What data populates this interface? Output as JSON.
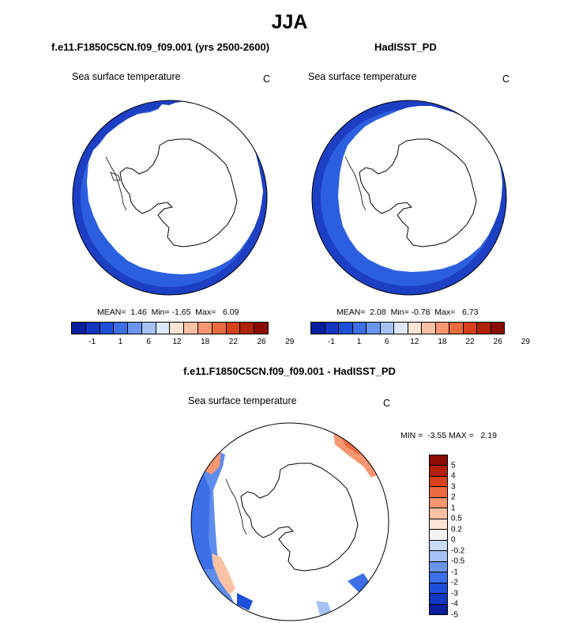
{
  "main_title": "JJA",
  "panels": [
    {
      "title": "f.e11.F1850C5CN.f09_f09.001 (yrs 2500-2600)",
      "variable": "Sea surface temperature",
      "units": "C",
      "stats": "MEAN=  1.46  Min= -1.65  Max=   6.09"
    },
    {
      "title": "HadISST_PD",
      "variable": "Sea surface temperature",
      "units": "C",
      "stats": "MEAN=  2.08  Min= -0.78  Max=   6.73"
    },
    {
      "title": "f.e11.F1850C5CN.f09_f09.001 - HadISST_PD",
      "variable": "Sea surface temperature",
      "units": "C",
      "stats": "MIN =  -3.55 MAX =   2.19"
    }
  ],
  "colors": {
    "abs_scale": [
      "#0a1f9e",
      "#1237c0",
      "#1e4fd8",
      "#3c6ee8",
      "#6b94ee",
      "#a6c2f4",
      "#dde9fb",
      "#fde4d4",
      "#fbc1a3",
      "#f79670",
      "#ee6a3f",
      "#d7401a",
      "#b12008",
      "#8a0c02"
    ],
    "diff_scale": [
      "#8a0c02",
      "#b12008",
      "#d7401a",
      "#ee6a3f",
      "#f79670",
      "#fbc1a3",
      "#fde4d4",
      "#f4f4f4",
      "#c9dbf8",
      "#a6c2f4",
      "#6b94ee",
      "#3c6ee8",
      "#1e4fd8",
      "#1237c0",
      "#0a1f9e"
    ],
    "ocean_blue": "#2c5fe0",
    "ocean_blue_dark": "#1c3fc4"
  },
  "abs_colorbar_ticks": [
    "-1",
    "1",
    "6",
    "12",
    "18",
    "22",
    "26",
    "29"
  ],
  "diff_colorbar_ticks": [
    "5",
    "4",
    "3",
    "2",
    "1",
    "0.5",
    "0.2",
    "0",
    "-0.2",
    "-0.5",
    "-1",
    "-2",
    "-3",
    "-4",
    "-5"
  ]
}
